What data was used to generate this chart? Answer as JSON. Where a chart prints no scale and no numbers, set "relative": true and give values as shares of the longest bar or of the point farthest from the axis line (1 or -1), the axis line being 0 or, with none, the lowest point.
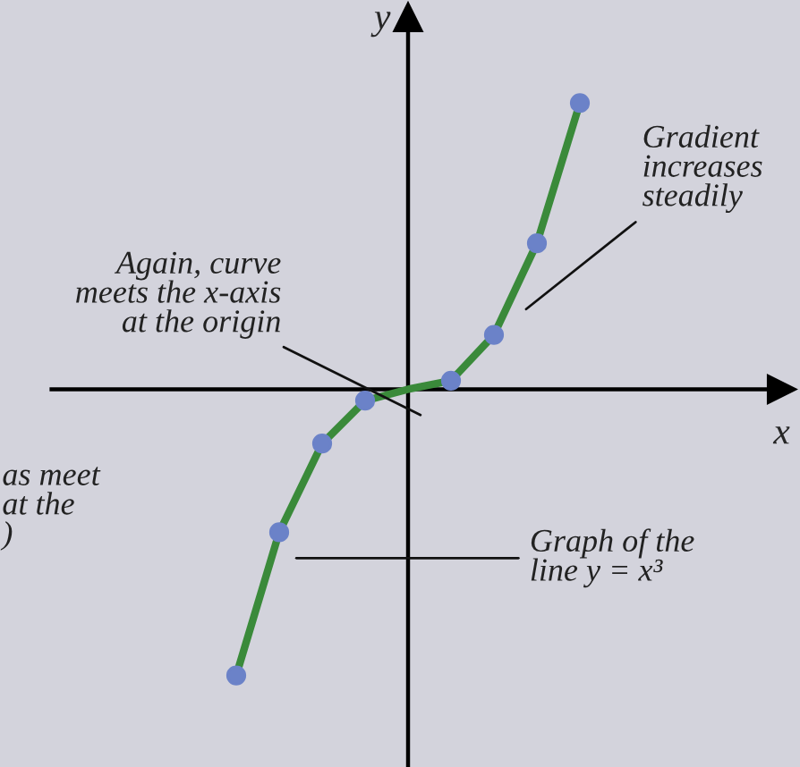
{
  "chart_data": {
    "type": "line",
    "relative": true,
    "xlabel": "x",
    "ylabel": "y",
    "marker": "circle",
    "categories": [
      null,
      null,
      null,
      null,
      null,
      null,
      null,
      null,
      null
    ],
    "series": [
      {
        "color": "#3a8a3a",
        "values": [
          -1,
          -0.5,
          -0.19,
          -0.04,
          0,
          0.03,
          0.19,
          0.51,
          1
        ]
      }
    ],
    "annotations": [
      "Gradient\nincreases\nsteadily",
      "Again, curve\nmeets the x-axis\nat the origin",
      "as meet\nat the\n)",
      "Graph of the\nline y = x³"
    ],
    "legend": false
  }
}
